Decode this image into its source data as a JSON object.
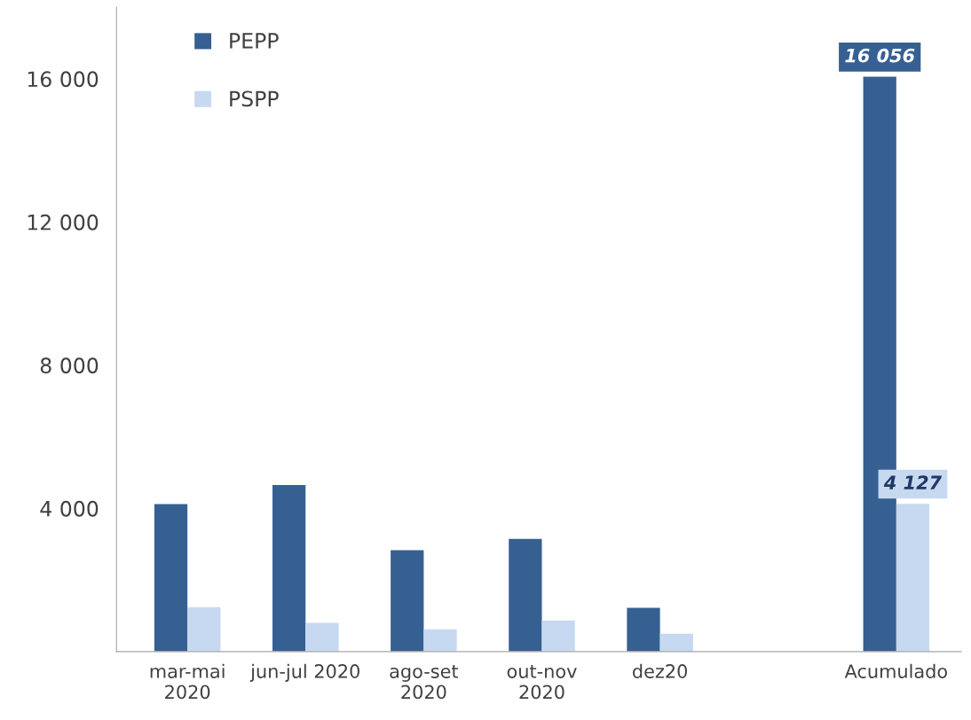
{
  "chart_data": {
    "type": "bar",
    "categories": [
      "mar-mai\n2020",
      "jun-jul 2020",
      "ago-set\n2020",
      "out-nov\n2020",
      "dez20",
      null,
      "Acumulado"
    ],
    "series": [
      {
        "name": "PEPP",
        "color": "#376092",
        "values": [
          4120,
          4650,
          2830,
          3150,
          1220,
          null,
          16056
        ],
        "value_labels": [
          null,
          null,
          null,
          null,
          null,
          null,
          "16 056"
        ]
      },
      {
        "name": "PSPP",
        "color": "#c6d9f0",
        "values": [
          1240,
          800,
          620,
          870,
          500,
          null,
          4127
        ],
        "value_labels": [
          null,
          null,
          null,
          null,
          null,
          null,
          "4 127"
        ]
      }
    ],
    "ylim": [
      0,
      18000
    ],
    "yticks": [
      {
        "value": 4000,
        "label": "4 000"
      },
      {
        "value": 8000,
        "label": "8 000"
      },
      {
        "value": 12000,
        "label": "12 000"
      },
      {
        "value": 16000,
        "label": "16 000"
      }
    ],
    "grid": false,
    "legend": "top left"
  }
}
